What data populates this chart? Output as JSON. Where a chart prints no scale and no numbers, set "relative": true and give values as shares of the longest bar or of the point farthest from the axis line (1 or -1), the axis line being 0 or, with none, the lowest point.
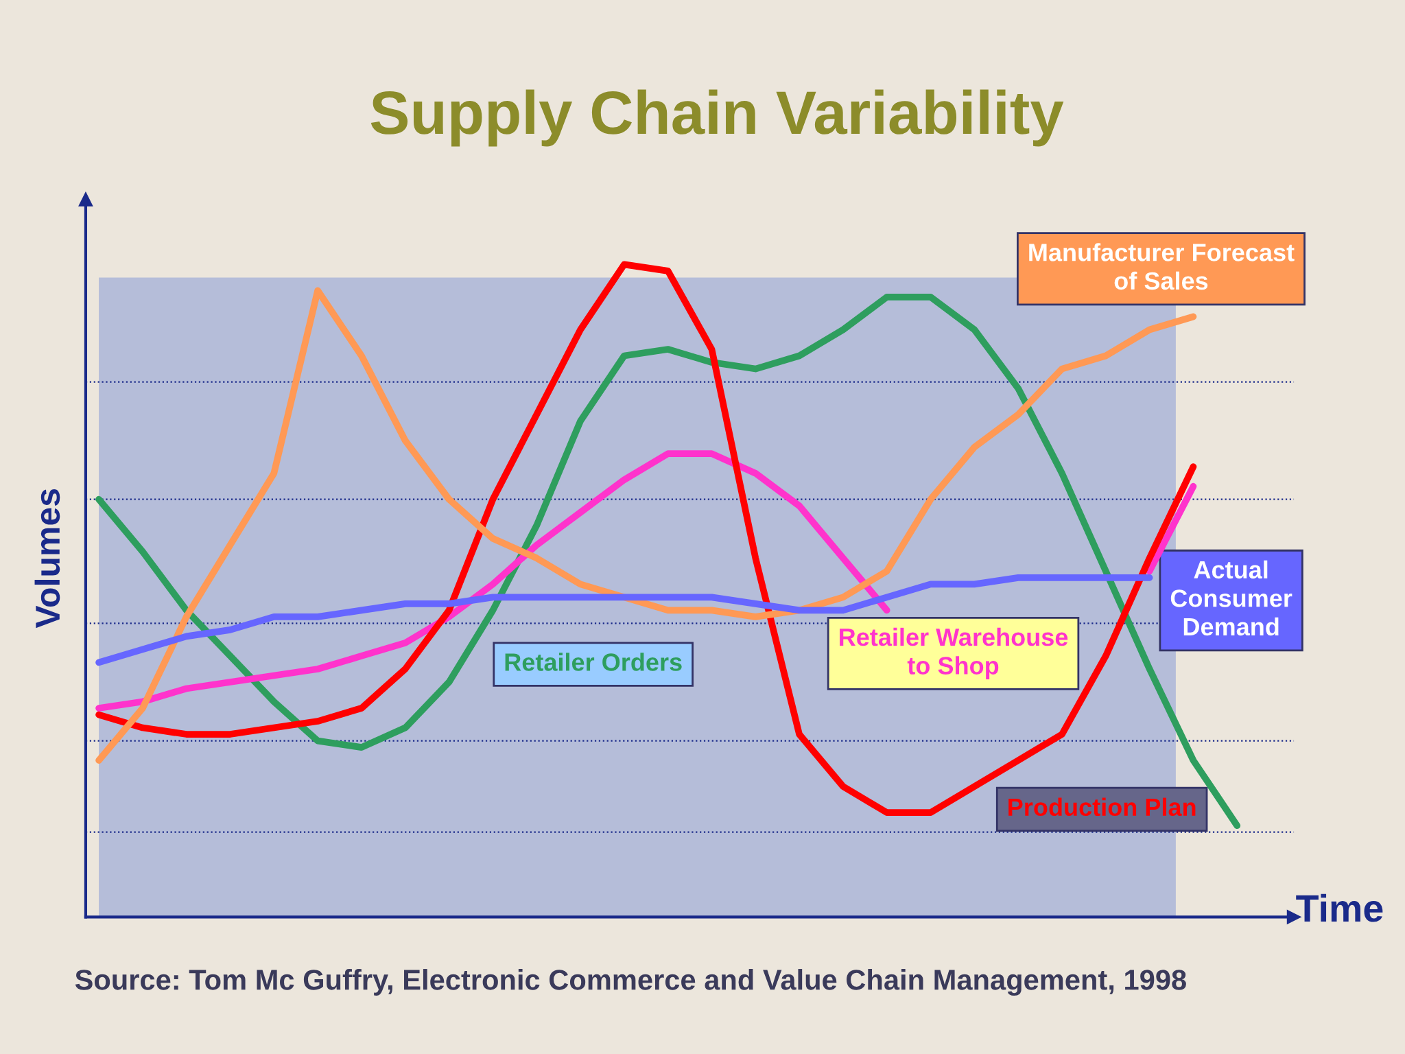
{
  "chart_data": {
    "type": "line",
    "title": "Supply Chain Variability",
    "xlabel": "Time",
    "ylabel": "Volumes",
    "relative": true,
    "legend": false,
    "categories": [
      null,
      null,
      null,
      null,
      null,
      null,
      null,
      null,
      null,
      null,
      null,
      null,
      null,
      null,
      null,
      null,
      null,
      null,
      null,
      null,
      null,
      null,
      null,
      null,
      null,
      null,
      null,
      null
    ],
    "series": [
      {
        "name": "Retailer Orders",
        "color": "#2e9e5e",
        "values": [
          0.64,
          0.56,
          0.47,
          0.4,
          0.33,
          0.27,
          0.26,
          0.29,
          0.36,
          0.47,
          0.6,
          0.76,
          0.86,
          0.87,
          0.85,
          0.84,
          0.86,
          0.9,
          0.95,
          0.95,
          0.9,
          0.81,
          0.68,
          0.53,
          0.38,
          0.24,
          0.14,
          null
        ]
      },
      {
        "name": "Retailer Warehouse to Shop",
        "color": "#ff33cc",
        "values": [
          0.32,
          0.33,
          0.35,
          0.36,
          0.37,
          0.38,
          0.4,
          0.42,
          0.46,
          0.51,
          0.57,
          0.62,
          0.67,
          0.71,
          0.71,
          0.68,
          0.63,
          0.55,
          0.47,
          null,
          null,
          null,
          null,
          null,
          0.53,
          0.66,
          null,
          null
        ]
      },
      {
        "name": "Production Plan",
        "color": "#ff0000",
        "values": [
          0.31,
          0.29,
          0.28,
          0.28,
          0.29,
          0.3,
          0.32,
          0.38,
          0.47,
          0.64,
          0.77,
          0.9,
          1.0,
          0.99,
          0.87,
          0.55,
          0.28,
          0.2,
          0.16,
          0.16,
          0.2,
          0.24,
          0.28,
          0.4,
          0.55,
          0.69,
          null,
          null
        ]
      },
      {
        "name": "Manufacturer Forecast of Sales",
        "color": "#ff9955",
        "values": [
          0.24,
          0.32,
          0.46,
          0.57,
          0.68,
          0.96,
          0.86,
          0.73,
          0.64,
          0.58,
          0.55,
          0.51,
          0.49,
          0.47,
          0.47,
          0.46,
          0.47,
          0.49,
          0.53,
          0.64,
          0.72,
          0.77,
          0.84,
          0.86,
          0.9,
          0.92,
          null,
          null
        ]
      },
      {
        "name": "Actual Consumer Demand",
        "color": "#6666ff",
        "values": [
          0.39,
          0.41,
          0.43,
          0.44,
          0.46,
          0.46,
          0.47,
          0.48,
          0.48,
          0.49,
          0.49,
          0.49,
          0.49,
          0.49,
          0.49,
          0.48,
          0.47,
          0.47,
          0.49,
          0.51,
          0.51,
          0.52,
          0.52,
          0.52,
          0.52,
          null,
          null,
          null
        ]
      }
    ],
    "ref_lines": [
      {
        "axis": "y",
        "value": 0.82,
        "color": "#1a2a8a",
        "line_style": "dotted"
      },
      {
        "axis": "y",
        "value": 0.64,
        "color": "#1a2a8a",
        "line_style": "dotted"
      },
      {
        "axis": "y",
        "value": 0.45,
        "color": "#1a2a8a",
        "line_style": "dotted"
      },
      {
        "axis": "y",
        "value": 0.27,
        "color": "#1a2a8a",
        "line_style": "dotted"
      },
      {
        "axis": "y",
        "value": 0.13,
        "color": "#1a2a8a",
        "line_style": "dotted"
      }
    ],
    "annotations": [
      "Source: Tom Mc Guffry, Electronic Commerce and Value Chain Management, 1998"
    ]
  }
}
